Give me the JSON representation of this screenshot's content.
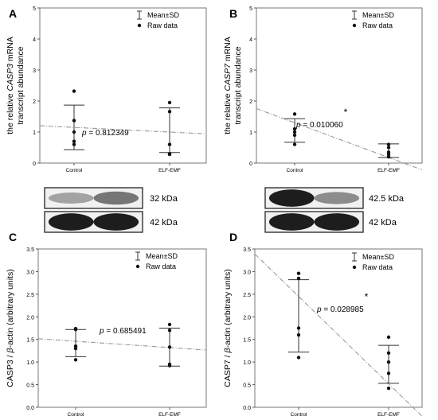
{
  "chart_data": [
    {
      "type": "scatter",
      "panel_letter": "A",
      "ylabel_parts": [
        "the relative ",
        "CASP3",
        " mRNA"
      ],
      "ylabel_line2": "transcript abundance",
      "categories": [
        "Control",
        "ELF-EMF"
      ],
      "ylim": [
        0,
        5
      ],
      "yticks": [
        "0",
        "1",
        "2",
        "3",
        "4",
        "5"
      ],
      "legend": {
        "mean_sd": "Mean±SD",
        "raw": "Raw data"
      },
      "pvalue_label": "p",
      "pvalue": "= 0.812349",
      "significance": "",
      "groups": [
        {
          "mean": 1.15,
          "sd": 0.72,
          "raw": [
            2.32,
            1.37,
            1.0,
            0.7,
            0.6
          ]
        },
        {
          "mean": 1.06,
          "sd": 0.72,
          "raw": [
            1.95,
            1.66,
            0.6,
            0.3,
            0.28
          ]
        }
      ],
      "trend": [
        1.15,
        1.0
      ]
    },
    {
      "type": "scatter",
      "panel_letter": "B",
      "ylabel_parts": [
        "the relative ",
        "CASP7",
        " mRNA"
      ],
      "ylabel_line2": "transcript abundance",
      "categories": [
        "Control",
        "ELF-EMF"
      ],
      "ylim": [
        0,
        5
      ],
      "yticks": [
        "0",
        "1",
        "2",
        "3",
        "4",
        "5"
      ],
      "legend": {
        "mean_sd": "Mean±SD",
        "raw": "Raw data"
      },
      "pvalue_label": "p",
      "pvalue": "= 0.010060",
      "significance": "*",
      "groups": [
        {
          "mean": 1.05,
          "sd": 0.38,
          "raw": [
            1.58,
            1.1,
            1.0,
            0.9,
            0.6
          ]
        },
        {
          "mean": 0.4,
          "sd": 0.22,
          "raw": [
            0.6,
            0.5,
            0.35,
            0.28,
            0.2
          ]
        }
      ],
      "trend": [
        1.3,
        0.18
      ]
    },
    {
      "type": "scatter",
      "panel_letter": "C",
      "ylabel_parts": [
        "CASP3 / ",
        "β",
        "-actin (arbitrary units)"
      ],
      "categories": [
        "Control",
        "ELF-EMF"
      ],
      "ylim": [
        0,
        3.5
      ],
      "yticks": [
        "0.0",
        "0.5",
        "1.0",
        "1.5",
        "2.0",
        "2.5",
        "3.0",
        "3.5"
      ],
      "legend": {
        "mean_sd": "Mean±SD",
        "raw": "Raw data"
      },
      "pvalue_label": "p",
      "pvalue": "= 0.685491",
      "significance": "",
      "groups": [
        {
          "mean": 1.42,
          "sd": 0.3,
          "raw": [
            1.74,
            1.72,
            1.35,
            1.3,
            1.05
          ]
        },
        {
          "mean": 1.33,
          "sd": 0.42,
          "raw": [
            1.83,
            1.7,
            1.33,
            0.95,
            0.92
          ]
        }
      ],
      "trend": [
        1.46,
        1.32
      ]
    },
    {
      "type": "scatter",
      "panel_letter": "D",
      "ylabel_parts": [
        "CASP7 / ",
        "β",
        "-actin (arbitrary units)"
      ],
      "categories": [
        "Control",
        "ELF-EMF"
      ],
      "ylim": [
        0,
        3.5
      ],
      "yticks": [
        "0.0",
        "0.5",
        "1.0",
        "1.5",
        "2.0",
        "2.5",
        "3.0",
        "3.5"
      ],
      "legend": {
        "mean_sd": "Mean±SD",
        "raw": "Raw data"
      },
      "pvalue_label": "p",
      "pvalue": "= 0.028985",
      "significance": "*",
      "groups": [
        {
          "mean": 2.02,
          "sd": 0.8,
          "raw": [
            2.96,
            2.85,
            1.75,
            1.6,
            1.1
          ]
        },
        {
          "mean": 0.95,
          "sd": 0.42,
          "raw": [
            1.55,
            1.2,
            1.0,
            0.75,
            0.42
          ]
        }
      ],
      "trend": [
        2.45,
        0.52
      ]
    }
  ],
  "blots": [
    {
      "bands": [
        "32 kDa",
        "42 kDa"
      ]
    },
    {
      "bands": [
        "42.5 kDa",
        "42 kDa"
      ]
    }
  ]
}
